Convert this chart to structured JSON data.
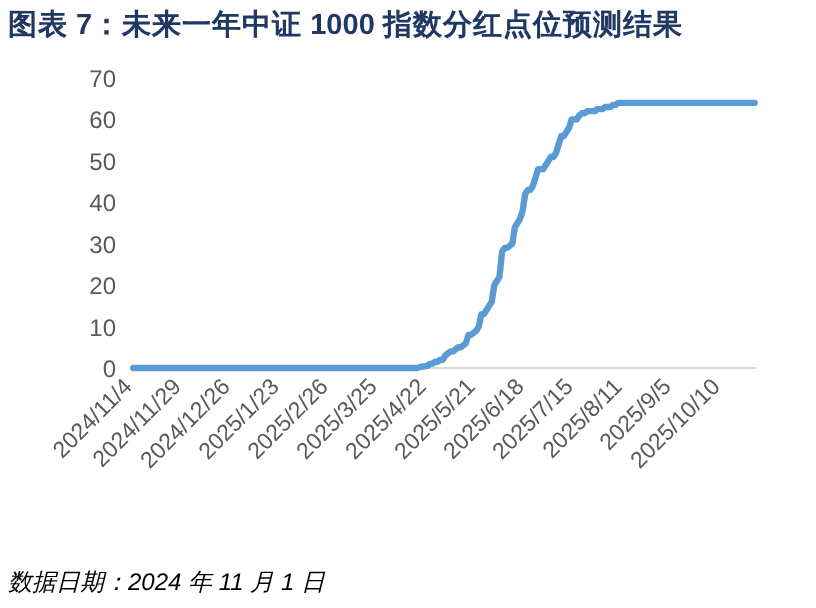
{
  "chart_data": {
    "type": "line",
    "title": "图表 7：未来一年中证 1000 指数分红点位预测结果",
    "annotations": [
      "数据日期：2024 年 11 月 1 日"
    ],
    "categories": [
      "2024/11/4",
      null,
      null,
      null,
      null,
      null,
      null,
      null,
      null,
      null,
      null,
      null,
      null,
      null,
      null,
      null,
      null,
      null,
      null,
      "2024/11/29",
      null,
      null,
      null,
      null,
      null,
      null,
      null,
      null,
      null,
      null,
      null,
      null,
      null,
      null,
      null,
      null,
      null,
      null,
      "2024/12/26",
      null,
      null,
      null,
      null,
      null,
      null,
      null,
      null,
      null,
      null,
      null,
      null,
      null,
      null,
      null,
      null,
      null,
      null,
      "2025/1/23",
      null,
      null,
      null,
      null,
      null,
      null,
      null,
      null,
      null,
      null,
      null,
      null,
      null,
      null,
      null,
      null,
      null,
      null,
      "2025/2/26",
      null,
      null,
      null,
      null,
      null,
      null,
      null,
      null,
      null,
      null,
      null,
      null,
      null,
      null,
      null,
      null,
      null,
      null,
      "2025/3/25",
      null,
      null,
      null,
      null,
      null,
      null,
      null,
      null,
      null,
      null,
      null,
      null,
      null,
      null,
      null,
      null,
      null,
      null,
      "2025/4/22",
      null,
      null,
      null,
      null,
      null,
      null,
      null,
      null,
      null,
      null,
      null,
      null,
      null,
      null,
      null,
      null,
      null,
      null,
      "2025/5/21",
      null,
      null,
      null,
      null,
      null,
      null,
      null,
      null,
      null,
      null,
      null,
      null,
      null,
      null,
      null,
      null,
      null,
      null,
      "2025/6/18",
      null,
      null,
      null,
      null,
      null,
      null,
      null,
      null,
      null,
      null,
      null,
      null,
      null,
      null,
      null,
      null,
      null,
      null,
      "2025/7/15",
      null,
      null,
      null,
      null,
      null,
      null,
      null,
      null,
      null,
      null,
      null,
      null,
      null,
      null,
      null,
      null,
      null,
      null,
      "2025/8/11",
      null,
      null,
      null,
      null,
      null,
      null,
      null,
      null,
      null,
      null,
      null,
      null,
      null,
      null,
      null,
      null,
      null,
      null,
      "2025/9/5",
      null,
      null,
      null,
      null,
      null,
      null,
      null,
      null,
      null,
      null,
      null,
      null,
      null,
      null,
      null,
      null,
      null,
      null,
      "2025/10/10",
      null,
      null,
      null,
      null,
      null,
      null,
      null,
      null,
      null,
      null,
      null,
      null,
      null
    ],
    "series": [
      {
        "color": "#5b9bd5",
        "values": [
          0,
          0,
          0,
          0,
          0,
          0,
          0,
          0,
          0,
          0,
          0,
          0,
          0,
          0,
          0,
          0,
          0,
          0,
          0,
          0,
          0,
          0,
          0,
          0,
          0,
          0,
          0,
          0,
          0,
          0,
          0,
          0,
          0,
          0,
          0,
          0,
          0,
          0,
          0,
          0,
          0,
          0,
          0,
          0,
          0,
          0,
          0,
          0,
          0,
          0,
          0,
          0,
          0,
          0,
          0,
          0,
          0,
          0,
          0,
          0,
          0,
          0,
          0,
          0,
          0,
          0,
          0,
          0,
          0,
          0,
          0,
          0,
          0,
          0,
          0,
          0,
          0,
          0,
          0,
          0,
          0,
          0,
          0,
          0,
          0,
          0,
          0,
          0,
          0,
          0,
          0,
          0,
          0,
          0,
          0,
          0,
          0,
          0,
          0,
          0,
          0,
          0,
          0,
          0,
          0,
          0,
          0,
          0,
          0,
          0,
          0,
          0.2,
          0.3,
          0.4,
          0.5,
          1,
          1,
          1.5,
          1.5,
          2,
          2,
          3,
          3.5,
          4,
          4,
          4.5,
          5,
          5,
          5.5,
          6,
          8,
          8,
          8.5,
          9,
          10,
          13,
          13,
          14,
          15,
          16,
          20,
          21,
          22,
          28,
          29,
          29,
          29.5,
          30,
          34,
          35,
          36,
          38,
          42,
          43,
          43,
          44,
          46,
          48,
          48,
          48,
          49,
          50,
          51,
          51,
          52,
          54,
          56,
          56,
          57,
          58,
          60,
          60,
          60,
          61,
          61.5,
          61.5,
          62,
          62,
          62,
          62,
          62.5,
          62.5,
          62.5,
          63,
          63,
          63,
          63.5,
          63.5,
          64,
          64,
          64,
          64,
          64,
          64,
          64,
          64,
          64,
          64,
          64,
          64,
          64,
          64,
          64,
          64,
          64,
          64,
          64,
          64,
          64,
          64,
          64,
          64,
          64,
          64,
          64,
          64,
          64,
          64,
          64,
          64,
          64,
          64,
          64,
          64,
          64,
          64,
          64,
          64,
          64,
          64,
          64,
          64,
          64,
          64,
          64,
          64,
          64,
          64,
          64,
          64,
          64,
          64
        ]
      }
    ],
    "ylim": [
      0,
      70
    ],
    "yticks": [
      0,
      10,
      20,
      30,
      40,
      50,
      60,
      70
    ],
    "grid": false
  }
}
